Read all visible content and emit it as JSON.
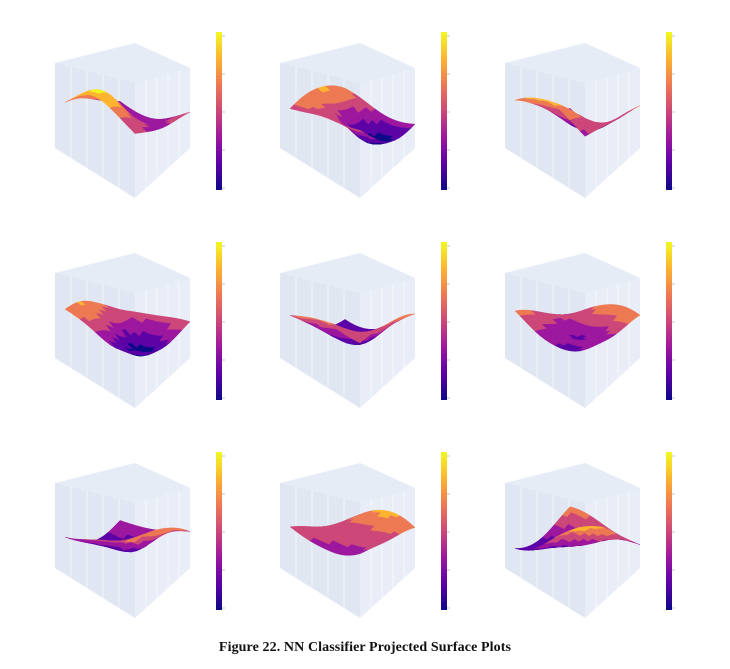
{
  "figure": {
    "caption": "Figure 22. NN Classifier Projected Surface Plots",
    "panel_count": 9,
    "colorscale": [
      "#0d0887",
      "#5c01a6",
      "#9c179e",
      "#cc4778",
      "#ed7953",
      "#fdb42f",
      "#f0f921"
    ],
    "scene_background": "#e5ecf6",
    "colorbar_ticks": "5"
  }
}
